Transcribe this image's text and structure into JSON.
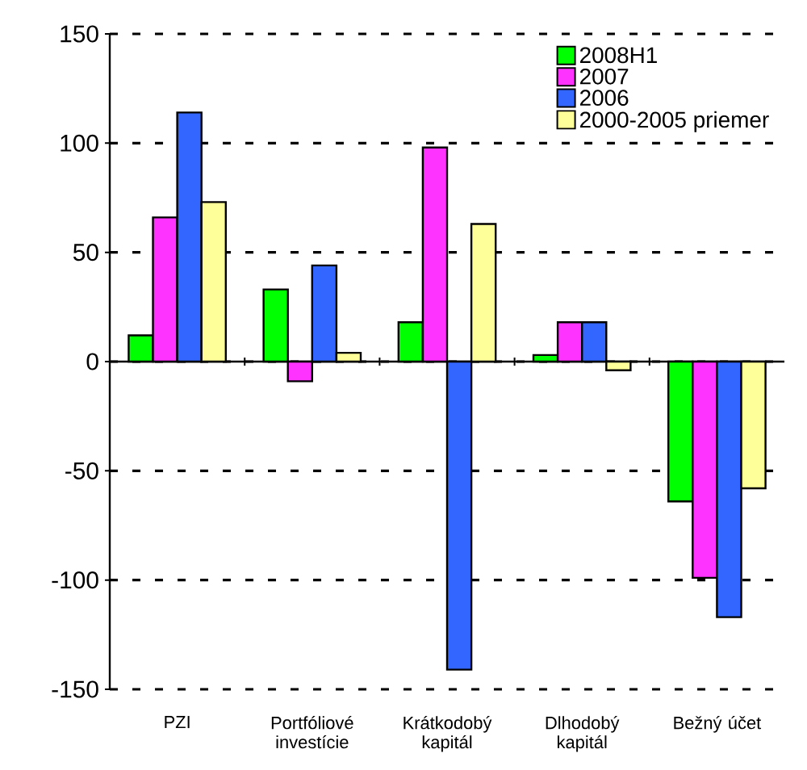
{
  "chart_data": {
    "type": "bar",
    "categories": [
      "PZI",
      "Portfóliové investície",
      "Krátkodobý kapitál",
      "Dlhodobý kapitál",
      "Bežný účet"
    ],
    "series": [
      {
        "name": "2008H1",
        "color": "#00ff00",
        "values": [
          12,
          33,
          18,
          3,
          -64
        ]
      },
      {
        "name": "2007",
        "color": "#ff33ff",
        "values": [
          66,
          -9,
          98,
          18,
          -99
        ]
      },
      {
        "name": "2006",
        "color": "#3366ff",
        "values": [
          114,
          44,
          -141,
          18,
          -117
        ]
      },
      {
        "name": "2000-2005 priemer",
        "color": "#ffff99",
        "values": [
          73,
          4,
          63,
          -4,
          -58
        ]
      }
    ],
    "ylim": [
      -150,
      150
    ],
    "yticks": [
      -150,
      -100,
      -50,
      0,
      50,
      100,
      150
    ],
    "grid": "y",
    "legend": "top right"
  }
}
